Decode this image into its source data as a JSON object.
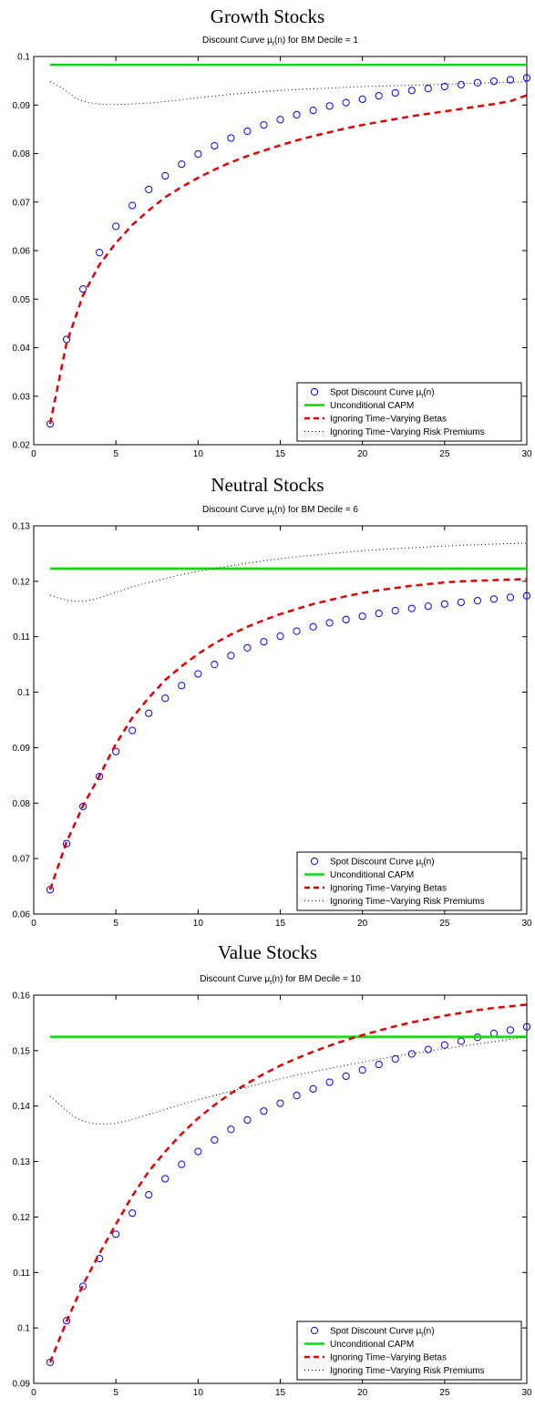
{
  "chart_data": [
    {
      "type": "line",
      "heading": "Growth Stocks",
      "title": {
        "pre": "Discount Curve μ",
        "sub": "t",
        "post": "(n) for BM Decile = 1"
      },
      "xlim": [
        0,
        30
      ],
      "ylim": [
        0.02,
        0.1
      ],
      "xticks": [
        0,
        5,
        10,
        15,
        20,
        25,
        30
      ],
      "yticks": [
        0.02,
        0.03,
        0.04,
        0.05,
        0.06,
        0.07,
        0.08,
        0.09,
        0.1
      ],
      "ytick_labels": [
        "0.02",
        "0.03",
        "0.04",
        "0.05",
        "0.06",
        "0.07",
        "0.08",
        "0.09",
        "0.1"
      ],
      "legend_position": "bottom-right",
      "series": [
        {
          "name": "Spot Discount Curve μt(n)",
          "name_parts": {
            "pre": "Spot Discount Curve μ",
            "sub": "t",
            "post": "(n)"
          },
          "style": "markers",
          "color": "#0000ff",
          "x": [
            1,
            2,
            3,
            4,
            5,
            6,
            7,
            8,
            9,
            10,
            11,
            12,
            13,
            14,
            15,
            16,
            17,
            18,
            19,
            20,
            21,
            22,
            23,
            24,
            25,
            26,
            27,
            28,
            29,
            30
          ],
          "y": [
            0.0243,
            0.0417,
            0.0521,
            0.0596,
            0.065,
            0.0693,
            0.0726,
            0.0754,
            0.0778,
            0.0799,
            0.0816,
            0.0832,
            0.0846,
            0.0859,
            0.087,
            0.088,
            0.0889,
            0.0898,
            0.0905,
            0.0912,
            0.0919,
            0.0925,
            0.093,
            0.0934,
            0.0938,
            0.0942,
            0.0946,
            0.0949,
            0.0952,
            0.0956
          ]
        },
        {
          "name": "Unconditional CAPM",
          "style": "solid",
          "color": "#00e000",
          "x": [
            1,
            30
          ],
          "y": [
            0.0983,
            0.0983
          ]
        },
        {
          "name": "Ignoring Time−Varying Betas",
          "style": "dashed",
          "color": "#e00000",
          "x": [
            1,
            2,
            3,
            4,
            5,
            6,
            7,
            8,
            9,
            10,
            11,
            12,
            13,
            14,
            15,
            16,
            17,
            18,
            19,
            20,
            21,
            22,
            23,
            24,
            25,
            26,
            27,
            28,
            29,
            30
          ],
          "y": [
            0.0243,
            0.041,
            0.0508,
            0.0571,
            0.0616,
            0.0653,
            0.0683,
            0.071,
            0.0731,
            0.075,
            0.0767,
            0.0782,
            0.0795,
            0.0806,
            0.0817,
            0.0827,
            0.0836,
            0.0844,
            0.0852,
            0.0859,
            0.0865,
            0.0871,
            0.0877,
            0.0882,
            0.0887,
            0.0892,
            0.0897,
            0.0902,
            0.0908,
            0.092
          ]
        },
        {
          "name": "Ignoring Time−Varying Risk Premiums",
          "style": "dotted",
          "color": "#000000",
          "x": [
            1,
            1.5,
            2,
            2.5,
            3,
            3.5,
            4,
            4.5,
            5,
            6,
            7,
            8,
            9,
            10,
            12,
            14,
            16,
            18,
            20,
            22,
            24,
            26,
            28,
            30
          ],
          "y": [
            0.0948,
            0.094,
            0.0928,
            0.0915,
            0.0908,
            0.0904,
            0.0902,
            0.0901,
            0.0901,
            0.0902,
            0.0904,
            0.0907,
            0.0911,
            0.0915,
            0.0922,
            0.0928,
            0.0932,
            0.0935,
            0.0938,
            0.094,
            0.0942,
            0.0944,
            0.0946,
            0.0948
          ]
        }
      ]
    },
    {
      "type": "line",
      "heading": "Neutral Stocks",
      "title": {
        "pre": "Discount Curve μ",
        "sub": "t",
        "post": "(n) for BM Decile = 6"
      },
      "xlim": [
        0,
        30
      ],
      "ylim": [
        0.06,
        0.13
      ],
      "xticks": [
        0,
        5,
        10,
        15,
        20,
        25,
        30
      ],
      "yticks": [
        0.06,
        0.07,
        0.08,
        0.09,
        0.1,
        0.11,
        0.12,
        0.13
      ],
      "ytick_labels": [
        "0.06",
        "0.07",
        "0.08",
        "0.09",
        "0.1",
        "0.11",
        "0.12",
        "0.13"
      ],
      "legend_position": "bottom-right",
      "series": [
        {
          "name": "Spot Discount Curve μt(n)",
          "name_parts": {
            "pre": "Spot Discount Curve μ",
            "sub": "t",
            "post": "(n)"
          },
          "style": "markers",
          "color": "#0000ff",
          "x": [
            1,
            2,
            3,
            4,
            5,
            6,
            7,
            8,
            9,
            10,
            11,
            12,
            13,
            14,
            15,
            16,
            17,
            18,
            19,
            20,
            21,
            22,
            23,
            24,
            25,
            26,
            27,
            28,
            29,
            30
          ],
          "y": [
            0.0644,
            0.0727,
            0.0794,
            0.0848,
            0.0893,
            0.0931,
            0.0962,
            0.0989,
            0.1012,
            0.1033,
            0.105,
            0.1066,
            0.108,
            0.1091,
            0.1101,
            0.111,
            0.1118,
            0.1125,
            0.1131,
            0.1137,
            0.1142,
            0.1147,
            0.1151,
            0.1155,
            0.1159,
            0.1162,
            0.1165,
            0.1168,
            0.1171,
            0.1174
          ]
        },
        {
          "name": "Unconditional CAPM",
          "style": "solid",
          "color": "#00e000",
          "x": [
            1,
            30
          ],
          "y": [
            0.1223,
            0.1223
          ]
        },
        {
          "name": "Ignoring Time−Varying Betas",
          "style": "dashed",
          "color": "#e00000",
          "x": [
            1,
            2,
            3,
            4,
            5,
            6,
            7,
            8,
            9,
            10,
            11,
            12,
            13,
            14,
            15,
            16,
            17,
            18,
            19,
            20,
            21,
            22,
            23,
            24,
            25,
            26,
            27,
            28,
            29,
            30
          ],
          "y": [
            0.0644,
            0.073,
            0.0795,
            0.0849,
            0.0907,
            0.0954,
            0.099,
            0.1022,
            0.1047,
            0.1069,
            0.1088,
            0.1104,
            0.1118,
            0.113,
            0.1141,
            0.115,
            0.1159,
            0.1166,
            0.1173,
            0.1179,
            0.1184,
            0.1188,
            0.1192,
            0.1195,
            0.1198,
            0.12,
            0.1201,
            0.1202,
            0.1203,
            0.1204
          ]
        },
        {
          "name": "Ignoring Time−Varying Risk Premiums",
          "style": "dotted",
          "color": "#000000",
          "x": [
            1,
            1.5,
            2,
            2.5,
            3,
            3.5,
            4,
            5,
            6,
            7,
            8,
            9,
            10,
            12,
            14,
            16,
            18,
            20,
            22,
            24,
            26,
            28,
            30
          ],
          "y": [
            0.1175,
            0.117,
            0.1166,
            0.1164,
            0.1164,
            0.1166,
            0.117,
            0.118,
            0.119,
            0.1198,
            0.1205,
            0.1212,
            0.1218,
            0.1228,
            0.1237,
            0.1244,
            0.125,
            0.1255,
            0.1259,
            0.1262,
            0.1265,
            0.1267,
            0.1269
          ]
        }
      ]
    },
    {
      "type": "line",
      "heading": "Value Stocks",
      "title": {
        "pre": "Discount Curve μ",
        "sub": "t",
        "post": "(n) for BM Decile = 10"
      },
      "xlim": [
        0,
        30
      ],
      "ylim": [
        0.09,
        0.16
      ],
      "xticks": [
        0,
        5,
        10,
        15,
        20,
        25,
        30
      ],
      "yticks": [
        0.09,
        0.1,
        0.11,
        0.12,
        0.13,
        0.14,
        0.15,
        0.16
      ],
      "ytick_labels": [
        "0.09",
        "0.1",
        "0.11",
        "0.12",
        "0.13",
        "0.14",
        "0.15",
        "0.16"
      ],
      "legend_position": "bottom-right",
      "series": [
        {
          "name": "Spot Discount Curve μt(n)",
          "name_parts": {
            "pre": "Spot Discount Curve μ",
            "sub": "t",
            "post": "(n)"
          },
          "style": "markers",
          "color": "#0000ff",
          "x": [
            1,
            2,
            3,
            4,
            5,
            6,
            7,
            8,
            9,
            10,
            11,
            12,
            13,
            14,
            15,
            16,
            17,
            18,
            19,
            20,
            21,
            22,
            23,
            24,
            25,
            26,
            27,
            28,
            29,
            30
          ],
          "y": [
            0.0938,
            0.1013,
            0.1075,
            0.1125,
            0.1169,
            0.1207,
            0.124,
            0.1269,
            0.1295,
            0.1318,
            0.1339,
            0.1358,
            0.1375,
            0.1391,
            0.1405,
            0.1419,
            0.1431,
            0.1443,
            0.1454,
            0.1465,
            0.1475,
            0.1485,
            0.1494,
            0.1502,
            0.151,
            0.1517,
            0.1524,
            0.1531,
            0.1537,
            0.1543
          ]
        },
        {
          "name": "Unconditional CAPM",
          "style": "solid",
          "color": "#00e000",
          "x": [
            1,
            30
          ],
          "y": [
            0.1525,
            0.1525
          ]
        },
        {
          "name": "Ignoring Time−Varying Betas",
          "style": "dashed",
          "color": "#e00000",
          "x": [
            1,
            2,
            3,
            4,
            5,
            6,
            7,
            8,
            9,
            10,
            11,
            12,
            13,
            14,
            15,
            16,
            17,
            18,
            19,
            20,
            21,
            22,
            23,
            24,
            25,
            26,
            27,
            28,
            29,
            30
          ],
          "y": [
            0.0938,
            0.1012,
            0.1078,
            0.1134,
            0.1187,
            0.1238,
            0.1282,
            0.1318,
            0.135,
            0.1378,
            0.1402,
            0.1423,
            0.1441,
            0.1458,
            0.1473,
            0.1486,
            0.1498,
            0.1509,
            0.1519,
            0.1528,
            0.1536,
            0.1544,
            0.1551,
            0.1557,
            0.1563,
            0.1568,
            0.1573,
            0.1577,
            0.158,
            0.1583
          ]
        },
        {
          "name": "Ignoring Time−Varying Risk Premiums",
          "style": "dotted",
          "color": "#000000",
          "x": [
            1,
            1.5,
            2,
            2.5,
            3,
            3.5,
            4,
            4.5,
            5,
            6,
            7,
            8,
            9,
            10,
            12,
            14,
            16,
            18,
            20,
            22,
            24,
            26,
            28,
            30
          ],
          "y": [
            0.1418,
            0.1405,
            0.1392,
            0.138,
            0.1373,
            0.1369,
            0.1368,
            0.1368,
            0.1369,
            0.1376,
            0.1385,
            0.1394,
            0.1403,
            0.1411,
            0.1427,
            0.1442,
            0.1456,
            0.1468,
            0.1479,
            0.149,
            0.1499,
            0.1508,
            0.1516,
            0.1525
          ]
        }
      ]
    }
  ]
}
